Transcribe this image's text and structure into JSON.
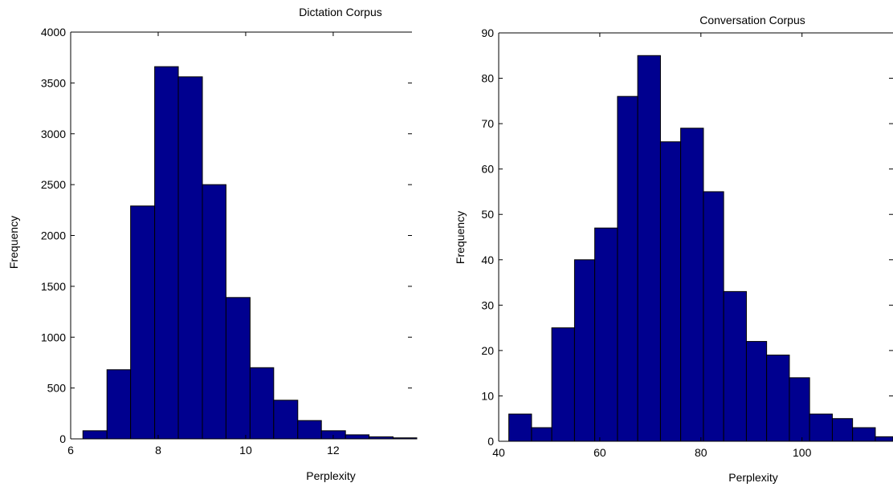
{
  "colors": {
    "bar_fill": "#00008F",
    "bar_edge": "#000000",
    "axis": "#000000",
    "background": "#FFFFFF"
  },
  "chart_data": [
    {
      "type": "bar",
      "title": "Dictation Corpus",
      "xlabel": "Perplexity",
      "ylabel": "Frequency",
      "xlim": [
        6,
        13.8
      ],
      "ylim": [
        0,
        4000
      ],
      "xticks": [
        6,
        8,
        10,
        12
      ],
      "yticks": [
        0,
        500,
        1000,
        1500,
        2000,
        2500,
        3000,
        3500,
        4000
      ],
      "xtick_labels": [
        "6",
        "8",
        "10",
        "12"
      ],
      "ytick_labels": [
        "0",
        "500",
        "1000",
        "1500",
        "2000",
        "2500",
        "3000",
        "3500",
        "4000"
      ],
      "bin_edges": [
        6.28,
        6.83,
        7.37,
        7.92,
        8.46,
        9.01,
        9.55,
        10.1,
        10.64,
        11.19,
        11.73,
        12.28,
        12.82,
        13.37,
        13.91
      ],
      "values": [
        80,
        680,
        2290,
        3660,
        3560,
        2500,
        1390,
        700,
        380,
        180,
        80,
        40,
        20,
        10
      ]
    },
    {
      "type": "bar",
      "title": "Conversation Corpus",
      "xlabel": "Perplexity",
      "ylabel": "Frequency",
      "xlim": [
        40,
        118
      ],
      "ylim": [
        0,
        90
      ],
      "xticks": [
        40,
        60,
        80,
        100
      ],
      "yticks": [
        0,
        10,
        20,
        30,
        40,
        50,
        60,
        70,
        80,
        90
      ],
      "xtick_labels": [
        "40",
        "60",
        "80",
        "100"
      ],
      "ytick_labels": [
        "0",
        "10",
        "20",
        "30",
        "40",
        "50",
        "60",
        "70",
        "80",
        "90"
      ],
      "bin_edges": [
        42.0,
        46.5,
        50.5,
        55.0,
        59.0,
        63.5,
        67.5,
        72.0,
        76.0,
        80.5,
        84.5,
        89.0,
        93.0,
        97.5,
        101.5,
        106.0,
        110.0,
        114.5,
        118.0
      ],
      "values": [
        6,
        3,
        25,
        40,
        47,
        76,
        85,
        66,
        69,
        55,
        33,
        22,
        19,
        14,
        6,
        5,
        3,
        1
      ]
    }
  ]
}
